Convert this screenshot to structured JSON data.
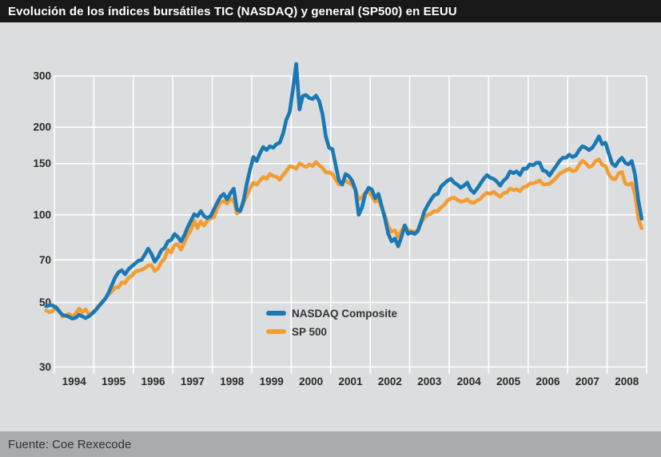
{
  "title": "Evolución de los índices bursátiles TIC (NASDAQ) y general (SP500) en EEUU",
  "source": "Fuente: Coe Rexecode",
  "colors": {
    "background": "#dcddde",
    "title_bar": "#191919",
    "title_text": "#ffffff",
    "footer_bar": "#a9abac",
    "footer_text": "#333333",
    "grid": "#ffffff",
    "axis_text": "#2a2a2a",
    "nasdaq_blue": "#1a78b4",
    "sp500_orange": "#f19d33"
  },
  "chart_data": {
    "type": "line",
    "yscale": "log",
    "grid": true,
    "legend_position": "inside-center-left",
    "xlabel": "",
    "ylabel": "",
    "yticks": [
      30,
      50,
      70,
      100,
      150,
      200,
      300
    ],
    "ylim": [
      28,
      345
    ],
    "year_labels": [
      "1994",
      "1995",
      "1996",
      "1997",
      "1998",
      "1999",
      "2000",
      "2001",
      "2002",
      "2003",
      "2004",
      "2005",
      "2006",
      "2007",
      "2008"
    ],
    "xlim": [
      1993.75,
      2009.0
    ],
    "x_start_decimal_year": 1993.792,
    "x_step_years": 0.08333,
    "frequency": "monthly (Oct 1993 - Nov 2008), values indexed",
    "series": [
      {
        "name": "NASDAQ Composite",
        "color": "#1a78b4",
        "values": [
          48.5,
          49.0,
          48.8,
          48.0,
          46.5,
          45.3,
          45.0,
          44.6,
          44.0,
          44.3,
          45.4,
          44.8,
          44.2,
          44.8,
          45.8,
          47.0,
          48.5,
          50.0,
          51.5,
          54.0,
          57.5,
          61.0,
          63.5,
          64.5,
          62.5,
          65.0,
          66.5,
          68.0,
          69.5,
          70.0,
          73.0,
          76.5,
          73.5,
          69.0,
          71.5,
          75.5,
          77.0,
          81.0,
          82.0,
          86.0,
          84.0,
          81.0,
          85.0,
          90.5,
          95.5,
          100.5,
          99.0,
          103.0,
          99.0,
          97.5,
          99.0,
          104.5,
          110.0,
          115.5,
          118.0,
          113.0,
          118.5,
          123.0,
          104.0,
          103.0,
          112.0,
          128.0,
          143.5,
          158.0,
          153.0,
          163.0,
          171.0,
          167.0,
          172.0,
          170.0,
          175.0,
          177.0,
          190.0,
          212.0,
          225.0,
          270.0,
          330.0,
          230.0,
          256.0,
          258.0,
          252.0,
          250.0,
          257.0,
          246.0,
          222.0,
          186.0,
          170.0,
          168.0,
          148.0,
          131.0,
          127.0,
          138.0,
          136.0,
          131.0,
          122.0,
          100.0,
          106.0,
          118.0,
          124.0,
          122.0,
          114.0,
          118.0,
          107.0,
          97.0,
          86.0,
          81.0,
          83.0,
          78.0,
          84.0,
          92.0,
          86.0,
          87.0,
          86.0,
          88.0,
          95.0,
          103.0,
          108.0,
          113.0,
          117.0,
          118.0,
          125.0,
          128.0,
          131.0,
          133.0,
          129.0,
          127.0,
          124.0,
          126.0,
          129.0,
          122.0,
          119.0,
          123.0,
          128.0,
          133.0,
          137.0,
          134.0,
          133.0,
          130.0,
          126.0,
          131.0,
          134.0,
          141.0,
          139.0,
          141.0,
          137.0,
          144.0,
          144.0,
          149.0,
          148.0,
          151.0,
          151.0,
          142.0,
          141.0,
          136.5,
          142.0,
          147.0,
          153.0,
          157.0,
          157.0,
          161.0,
          158.0,
          160.0,
          167.0,
          172.0,
          170.0,
          167.0,
          170.0,
          177.0,
          186.0,
          175.0,
          177.0,
          163.0,
          150.0,
          147.0,
          153.0,
          157.0,
          151.0,
          149.0,
          153.0,
          137.0,
          112.0,
          97.0
        ]
      },
      {
        "name": "SP 500",
        "color": "#f19d33",
        "values": [
          46.9,
          46.3,
          46.7,
          48.3,
          46.8,
          44.7,
          45.2,
          45.7,
          44.5,
          45.9,
          47.6,
          46.4,
          47.3,
          45.5,
          46.0,
          47.1,
          48.8,
          50.2,
          51.6,
          53.4,
          54.6,
          56.3,
          56.3,
          58.6,
          58.3,
          60.7,
          61.7,
          63.7,
          64.2,
          64.7,
          65.6,
          67.0,
          67.2,
          64.1,
          65.3,
          68.9,
          70.7,
          75.9,
          74.2,
          78.8,
          79.2,
          75.9,
          80.3,
          85.0,
          88.7,
          95.6,
          90.1,
          94.9,
          91.7,
          95.7,
          97.2,
          98.2,
          105.1,
          110.4,
          111.4,
          109.3,
          113.6,
          112.3,
          101.0,
          103.0,
          110.1,
          116.6,
          123.2,
          129.0,
          127.0,
          131.0,
          135.0,
          133.0,
          138.0,
          136.0,
          135.0,
          132.0,
          137.0,
          141.0,
          147.0,
          146.0,
          144.0,
          150.0,
          148.0,
          146.0,
          149.0,
          147.0,
          152.0,
          148.0,
          145.0,
          140.0,
          140.0,
          138.0,
          132.0,
          127.0,
          130.0,
          131.0,
          129.0,
          127.0,
          122.0,
          113.0,
          115.0,
          119.0,
          120.0,
          116.0,
          111.0,
          113.0,
          106.0,
          99.0,
          91.0,
          87.5,
          88.5,
          84.0,
          88.0,
          92.0,
          88.5,
          88.0,
          87.0,
          89.0,
          94.0,
          98.0,
          100.0,
          101.0,
          103.0,
          103.0,
          106.0,
          108.0,
          112.0,
          114.0,
          114.5,
          112.5,
          111.0,
          111.5,
          113.0,
          110.5,
          110.0,
          112.0,
          113.5,
          117.0,
          119.0,
          118.0,
          120.0,
          117.5,
          115.5,
          118.5,
          119.5,
          123.0,
          121.5,
          122.5,
          120.5,
          124.5,
          125.0,
          128.3,
          128.3,
          129.7,
          131.3,
          127.3,
          127.3,
          127.9,
          130.6,
          133.9,
          138.1,
          140.3,
          142.1,
          144.1,
          141.0,
          142.4,
          148.5,
          153.4,
          150.6,
          145.8,
          147.7,
          153.0,
          155.2,
          148.4,
          147.1,
          138.0,
          133.3,
          132.5,
          138.8,
          140.3,
          128.3,
          127.0,
          128.5,
          117.0,
          97.0,
          90.0
        ]
      }
    ]
  }
}
